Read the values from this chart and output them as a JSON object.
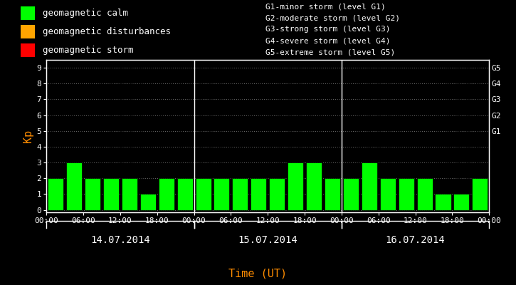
{
  "background_color": "#000000",
  "plot_bg_color": "#000000",
  "bar_color": "#00ff00",
  "bar_edge_color": "#000000",
  "grid_color": "#ffffff",
  "axis_color": "#ffffff",
  "text_color": "#ffffff",
  "kp_label_color": "#ff8c00",
  "xlabel_color": "#ff8c00",
  "date_label_color": "#ffffff",
  "kp_values": [
    2,
    3,
    2,
    2,
    2,
    1,
    2,
    2,
    2,
    2,
    2,
    2,
    2,
    3,
    3,
    2,
    2,
    3,
    2,
    2,
    2,
    1,
    1,
    2
  ],
  "n_bars": 24,
  "bar_width": 0.85,
  "ylim": [
    -0.15,
    9.5
  ],
  "yticks": [
    0,
    1,
    2,
    3,
    4,
    5,
    6,
    7,
    8,
    9
  ],
  "day_labels": [
    "14.07.2014",
    "15.07.2014",
    "16.07.2014"
  ],
  "day_dividers": [
    8,
    16
  ],
  "hour_labels": [
    "00:00",
    "06:00",
    "12:00",
    "18:00",
    "00:00",
    "06:00",
    "12:00",
    "18:00",
    "00:00",
    "06:00",
    "12:00",
    "18:00",
    "00:00"
  ],
  "hour_tick_positions": [
    0,
    2,
    4,
    6,
    8,
    10,
    12,
    14,
    16,
    18,
    20,
    22,
    24
  ],
  "right_axis_labels": [
    "G1",
    "G2",
    "G3",
    "G4",
    "G5"
  ],
  "right_axis_positions": [
    5,
    6,
    7,
    8,
    9
  ],
  "legend_items": [
    {
      "label": "geomagnetic calm",
      "color": "#00ff00"
    },
    {
      "label": "geomagnetic disturbances",
      "color": "#ffa500"
    },
    {
      "label": "geomagnetic storm",
      "color": "#ff0000"
    }
  ],
  "legend_notes": [
    "G1-minor storm (level G1)",
    "G2-moderate storm (level G2)",
    "G3-strong storm (level G3)",
    "G4-severe storm (level G4)",
    "G5-extreme storm (level G5)"
  ],
  "kp_ylabel": "Kp",
  "xlabel": "Time (UT)",
  "font_family": "monospace",
  "font_size_axis": 8,
  "font_size_legend": 9,
  "font_size_note": 8,
  "font_size_ylabel": 11,
  "font_size_xlabel": 11,
  "font_size_date": 10
}
